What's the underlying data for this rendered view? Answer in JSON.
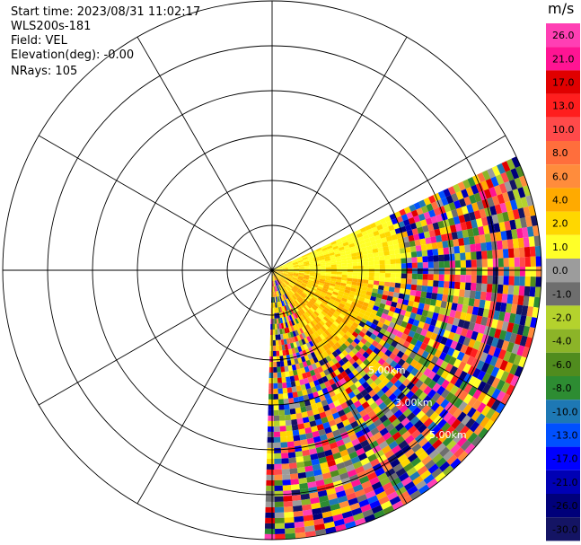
{
  "header": {
    "start_time": "Start time: 2023/08/31 11:02:17",
    "instrument": "WLS200s-181",
    "field": "Field: VEL",
    "elevation": "Elevation(deg): -0.00",
    "nrays": "NRays: 105"
  },
  "chart_data": {
    "type": "ppi",
    "field": "VEL",
    "units": "m/s",
    "sector_deg": [
      -25,
      90
    ],
    "range_rings": 6,
    "spokes_every_deg": 30,
    "ring_labels": [
      "5.00km",
      "3.00km",
      "5.00km"
    ],
    "colorbar": {
      "unit": "m/s",
      "ticks": [
        "26.0",
        "21.0",
        "17.0",
        "13.0",
        "10.0",
        "8.0",
        "6.0",
        "4.0",
        "2.0",
        "1.0",
        "0.0",
        "-1.0",
        "-2.0",
        "-4.0",
        "-6.0",
        "-8.0",
        "-10.0",
        "-13.0",
        "-17.0",
        "-21.0",
        "-26.0",
        "-30.0"
      ],
      "colors": [
        "#ff3fb4",
        "#ff1493",
        "#e00000",
        "#ff1e1e",
        "#ff4a4a",
        "#ff6e3c",
        "#ff8c3c",
        "#ffaa00",
        "#ffd700",
        "#ffff28",
        "#9c9c9c",
        "#6e6e6e",
        "#b4d22d",
        "#8cb428",
        "#508c1e",
        "#2d8c32",
        "#1e78b4",
        "#0050ff",
        "#0000ff",
        "#0000b4",
        "#00007a",
        "#141464"
      ]
    }
  }
}
